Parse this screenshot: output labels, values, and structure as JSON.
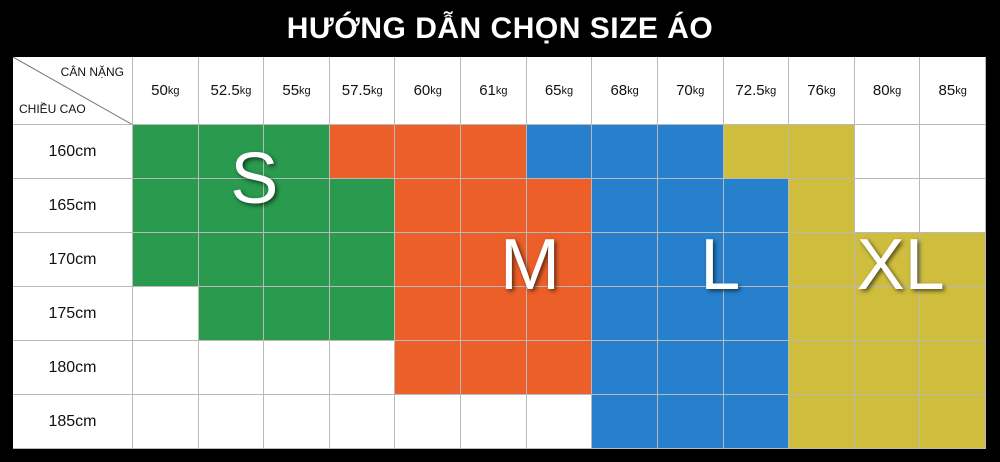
{
  "title": "HƯỚNG DẪN CHỌN SIZE ÁO",
  "corner": {
    "top_label": "CÂN NẶNG",
    "bottom_label": "CHIỀU CAO"
  },
  "weights": [
    {
      "num": "50",
      "unit": "kg"
    },
    {
      "num": "52.5",
      "unit": "kg"
    },
    {
      "num": "55",
      "unit": "kg"
    },
    {
      "num": "57.5",
      "unit": "kg"
    },
    {
      "num": "60",
      "unit": "kg"
    },
    {
      "num": "61",
      "unit": "kg"
    },
    {
      "num": "65",
      "unit": "kg"
    },
    {
      "num": "68",
      "unit": "kg"
    },
    {
      "num": "70",
      "unit": "kg"
    },
    {
      "num": "72.5",
      "unit": "kg"
    },
    {
      "num": "76",
      "unit": "kg"
    },
    {
      "num": "80",
      "unit": "kg"
    },
    {
      "num": "85",
      "unit": "kg"
    }
  ],
  "heights": [
    "160cm",
    "165cm",
    "170cm",
    "175cm",
    "180cm",
    "185cm"
  ],
  "sizes": [
    {
      "label": "S",
      "color": "#2a9a4e"
    },
    {
      "label": "M",
      "color": "#ec5f28"
    },
    {
      "label": "L",
      "color": "#2780cc"
    },
    {
      "label": "XL",
      "color": "#cfbd3e"
    }
  ],
  "empty_color": "#ffffff",
  "matrix": [
    [
      "S",
      "S",
      "S",
      "M",
      "M",
      "M",
      "L",
      "L",
      "L",
      "XL",
      "XL",
      "",
      ""
    ],
    [
      "S",
      "S",
      "S",
      "S",
      "M",
      "M",
      "M",
      "L",
      "L",
      "L",
      "XL",
      "",
      ""
    ],
    [
      "S",
      "S",
      "S",
      "S",
      "M",
      "M",
      "M",
      "L",
      "L",
      "L",
      "XL",
      "XL",
      "XL"
    ],
    [
      "",
      "S",
      "S",
      "S",
      "M",
      "M",
      "M",
      "L",
      "L",
      "L",
      "XL",
      "XL",
      "XL"
    ],
    [
      "",
      "",
      "",
      "",
      "M",
      "M",
      "M",
      "L",
      "L",
      "L",
      "XL",
      "XL",
      "XL"
    ],
    [
      "",
      "",
      "",
      "",
      "",
      "",
      "",
      "L",
      "L",
      "L",
      "XL",
      "XL",
      "XL"
    ]
  ]
}
